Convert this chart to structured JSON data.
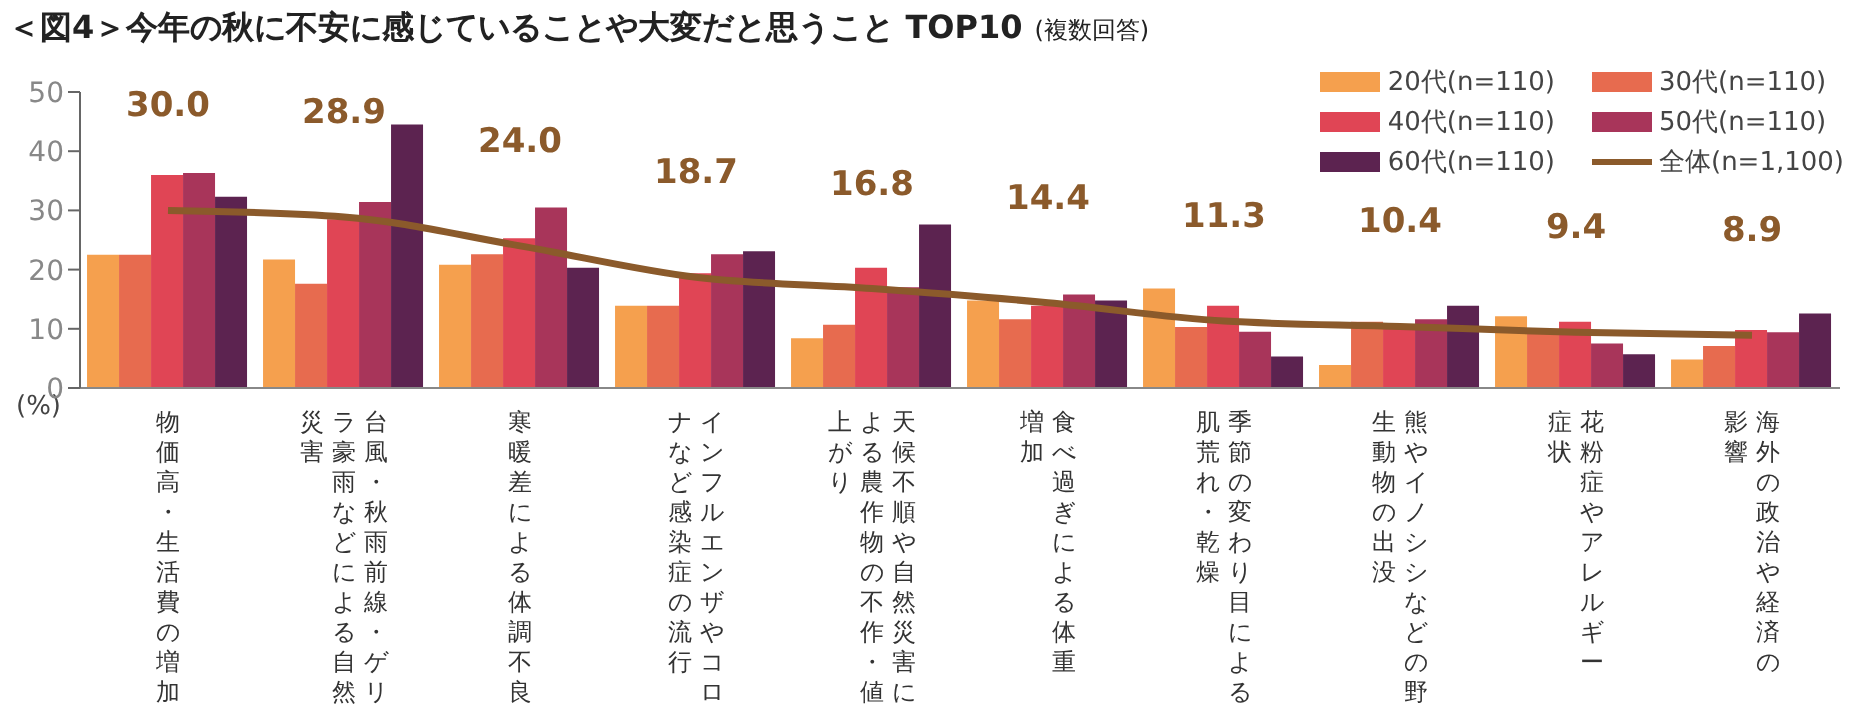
{
  "chart_data": {
    "type": "bar",
    "title": "＜図4＞今年の秋に不安に感じていることや大変だと思うこと TOP10",
    "subtitle": "(複数回答)",
    "ylabel": "(%)",
    "categories": [
      "物価高・生活費の増加",
      "台風・秋雨前線・ゲリラ豪雨などによる自然災害",
      "寒暖差による体調不良",
      "インフルエンザやコロナなど感染症の流行",
      "天候不順や自然災害による農作物の不作・値上がり",
      "食べ過ぎによる体重増加",
      "季節の変わり目による肌荒れ・乾燥",
      "熊やイノシシなどの野生動物の出没",
      "花粉症やアレルギー症状",
      "海外の政治や経済の影響"
    ],
    "series": [
      {
        "name": "20代(n=110)",
        "color": "#f5a04e",
        "values": [
          22.5,
          21.7,
          20.8,
          13.9,
          8.4,
          14.8,
          16.8,
          3.9,
          12.1,
          4.8
        ]
      },
      {
        "name": "30代(n=110)",
        "color": "#e76b4f",
        "values": [
          22.5,
          17.6,
          22.6,
          13.9,
          10.7,
          11.6,
          10.3,
          11.2,
          10.0,
          7.1
        ]
      },
      {
        "name": "40代(n=110)",
        "color": "#e04555",
        "values": [
          36.0,
          28.5,
          25.3,
          19.4,
          20.3,
          13.9,
          13.9,
          10.8,
          11.2,
          9.8
        ]
      },
      {
        "name": "50代(n=110)",
        "color": "#a8355a",
        "values": [
          36.3,
          31.4,
          30.5,
          22.6,
          17.0,
          15.8,
          9.5,
          11.6,
          7.5,
          9.4
        ]
      },
      {
        "name": "60代(n=110)",
        "color": "#5c2350",
        "values": [
          32.3,
          44.5,
          20.3,
          23.1,
          27.6,
          14.8,
          5.3,
          13.9,
          5.7,
          12.6
        ]
      },
      {
        "name": "全体(n=1,100)",
        "type": "line",
        "color": "#8b5a2b",
        "values": [
          30.0,
          28.9,
          24.0,
          18.7,
          16.8,
          14.4,
          11.3,
          10.4,
          9.4,
          8.9
        ],
        "value_labels": [
          "30.0",
          "28.9",
          "24.0",
          "18.7",
          "16.8",
          "14.4",
          "11.3",
          "10.4",
          "9.4",
          "8.9"
        ]
      }
    ],
    "ylim": [
      0,
      50
    ],
    "yticks": [
      0,
      10,
      20,
      30,
      40,
      50
    ],
    "grid": false,
    "legend": "top right",
    "marker": "none"
  }
}
